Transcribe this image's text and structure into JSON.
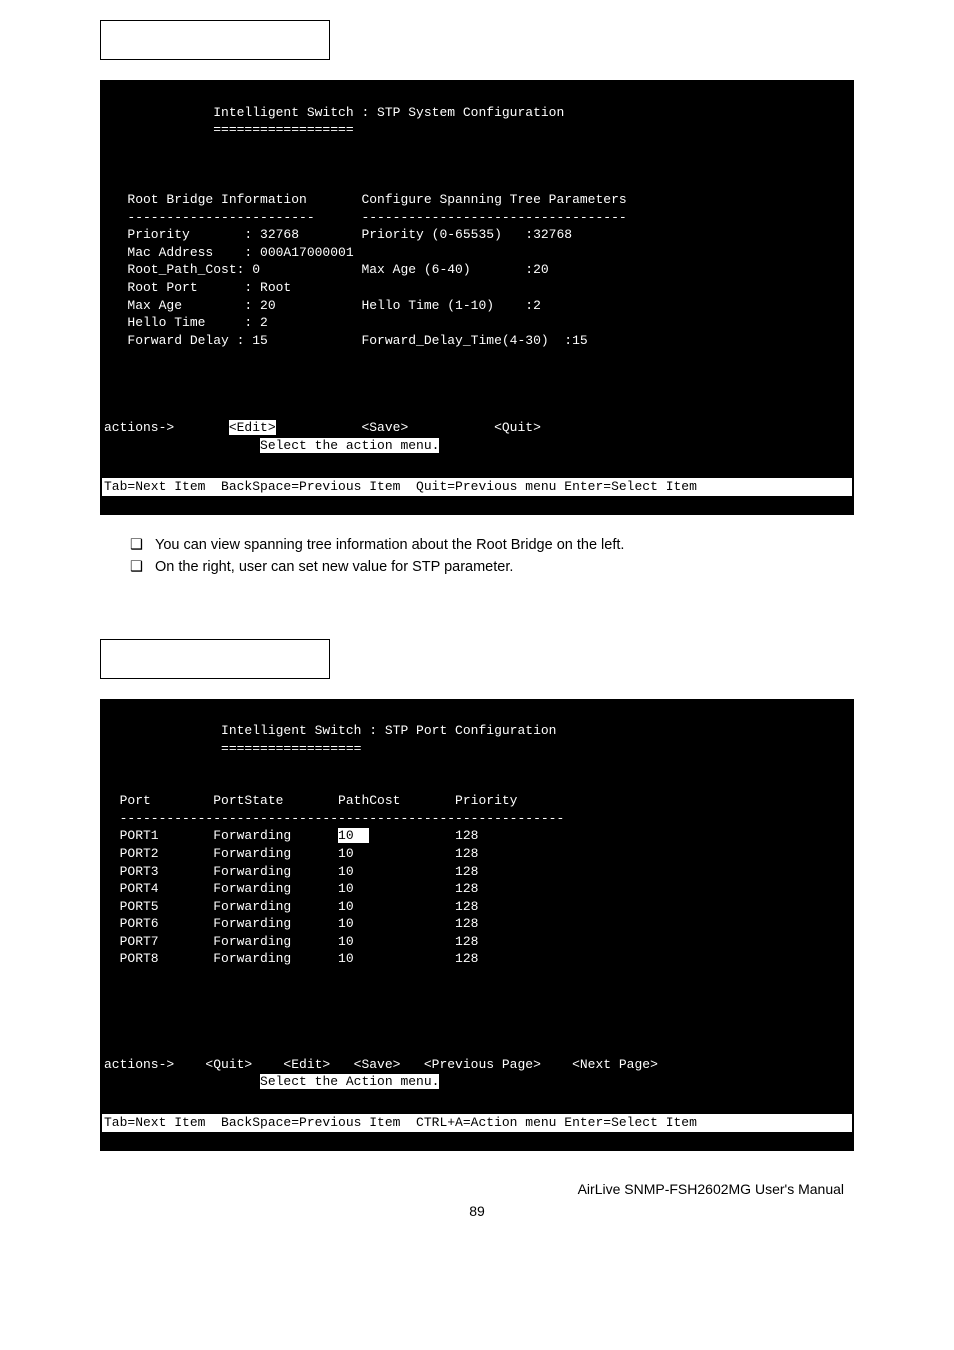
{
  "terminal1": {
    "title": "Intelligent Switch : STP System Configuration",
    "underline": "==================",
    "left_header": "Root Bridge Information",
    "left_rule": "------------------------",
    "right_header": "Configure Spanning Tree Parameters",
    "right_rule": "----------------------------------",
    "left_rows": [
      {
        "label": "Priority       :",
        "value": "32768"
      },
      {
        "label": "Mac Address    :",
        "value": "000A17000001"
      },
      {
        "label": "Root_Path_Cost:",
        "value": "0"
      },
      {
        "label": "Root Port      :",
        "value": "Root"
      },
      {
        "label": "Max Age        :",
        "value": "20"
      },
      {
        "label": "Hello Time     :",
        "value": "2"
      },
      {
        "label": "Forward Delay :",
        "value": "15"
      }
    ],
    "right_rows": [
      {
        "label": "Priority (0-65535)   :",
        "value": "32768"
      },
      {
        "label": "",
        "value": ""
      },
      {
        "label": "Max Age (6-40)       :",
        "value": "20"
      },
      {
        "label": "",
        "value": ""
      },
      {
        "label": "Hello Time (1-10)    :",
        "value": "2"
      },
      {
        "label": "",
        "value": ""
      },
      {
        "label": "Forward_Delay_Time(4-30)  :",
        "value": "15"
      }
    ],
    "actions_label": "actions->",
    "actions": [
      "<Edit>",
      "<Save>",
      "<Quit>"
    ],
    "action_hint": "Select the action menu.",
    "bottom_hint": "Tab=Next Item  BackSpace=Previous Item  Quit=Previous menu Enter=Select Item"
  },
  "bullets1": [
    "You can view spanning tree information about the Root Bridge on the left.",
    "On the right, user can set new value for STP parameter."
  ],
  "terminal2": {
    "title": "Intelligent Switch : STP Port Configuration",
    "underline": "==================",
    "columns": [
      "Port",
      "PortState",
      "PathCost",
      "Priority"
    ],
    "rule": "---------------------------------------------------------",
    "rows": [
      {
        "port": "PORT1",
        "state": "Forwarding",
        "cost": "10",
        "prio": "128",
        "hl": true
      },
      {
        "port": "PORT2",
        "state": "Forwarding",
        "cost": "10",
        "prio": "128",
        "hl": false
      },
      {
        "port": "PORT3",
        "state": "Forwarding",
        "cost": "10",
        "prio": "128",
        "hl": false
      },
      {
        "port": "PORT4",
        "state": "Forwarding",
        "cost": "10",
        "prio": "128",
        "hl": false
      },
      {
        "port": "PORT5",
        "state": "Forwarding",
        "cost": "10",
        "prio": "128",
        "hl": false
      },
      {
        "port": "PORT6",
        "state": "Forwarding",
        "cost": "10",
        "prio": "128",
        "hl": false
      },
      {
        "port": "PORT7",
        "state": "Forwarding",
        "cost": "10",
        "prio": "128",
        "hl": false
      },
      {
        "port": "PORT8",
        "state": "Forwarding",
        "cost": "10",
        "prio": "128",
        "hl": false
      }
    ],
    "actions_label": "actions->",
    "actions": [
      "<Quit>",
      "<Edit>",
      "<Save>",
      "<Previous Page>",
      "<Next Page>"
    ],
    "action_hint": "Select the Action menu.",
    "bottom_hint": "Tab=Next Item  BackSpace=Previous Item  CTRL+A=Action menu Enter=Select Item"
  },
  "footer": {
    "manual": "AirLive SNMP-FSH2602MG User's Manual",
    "page": "89"
  }
}
